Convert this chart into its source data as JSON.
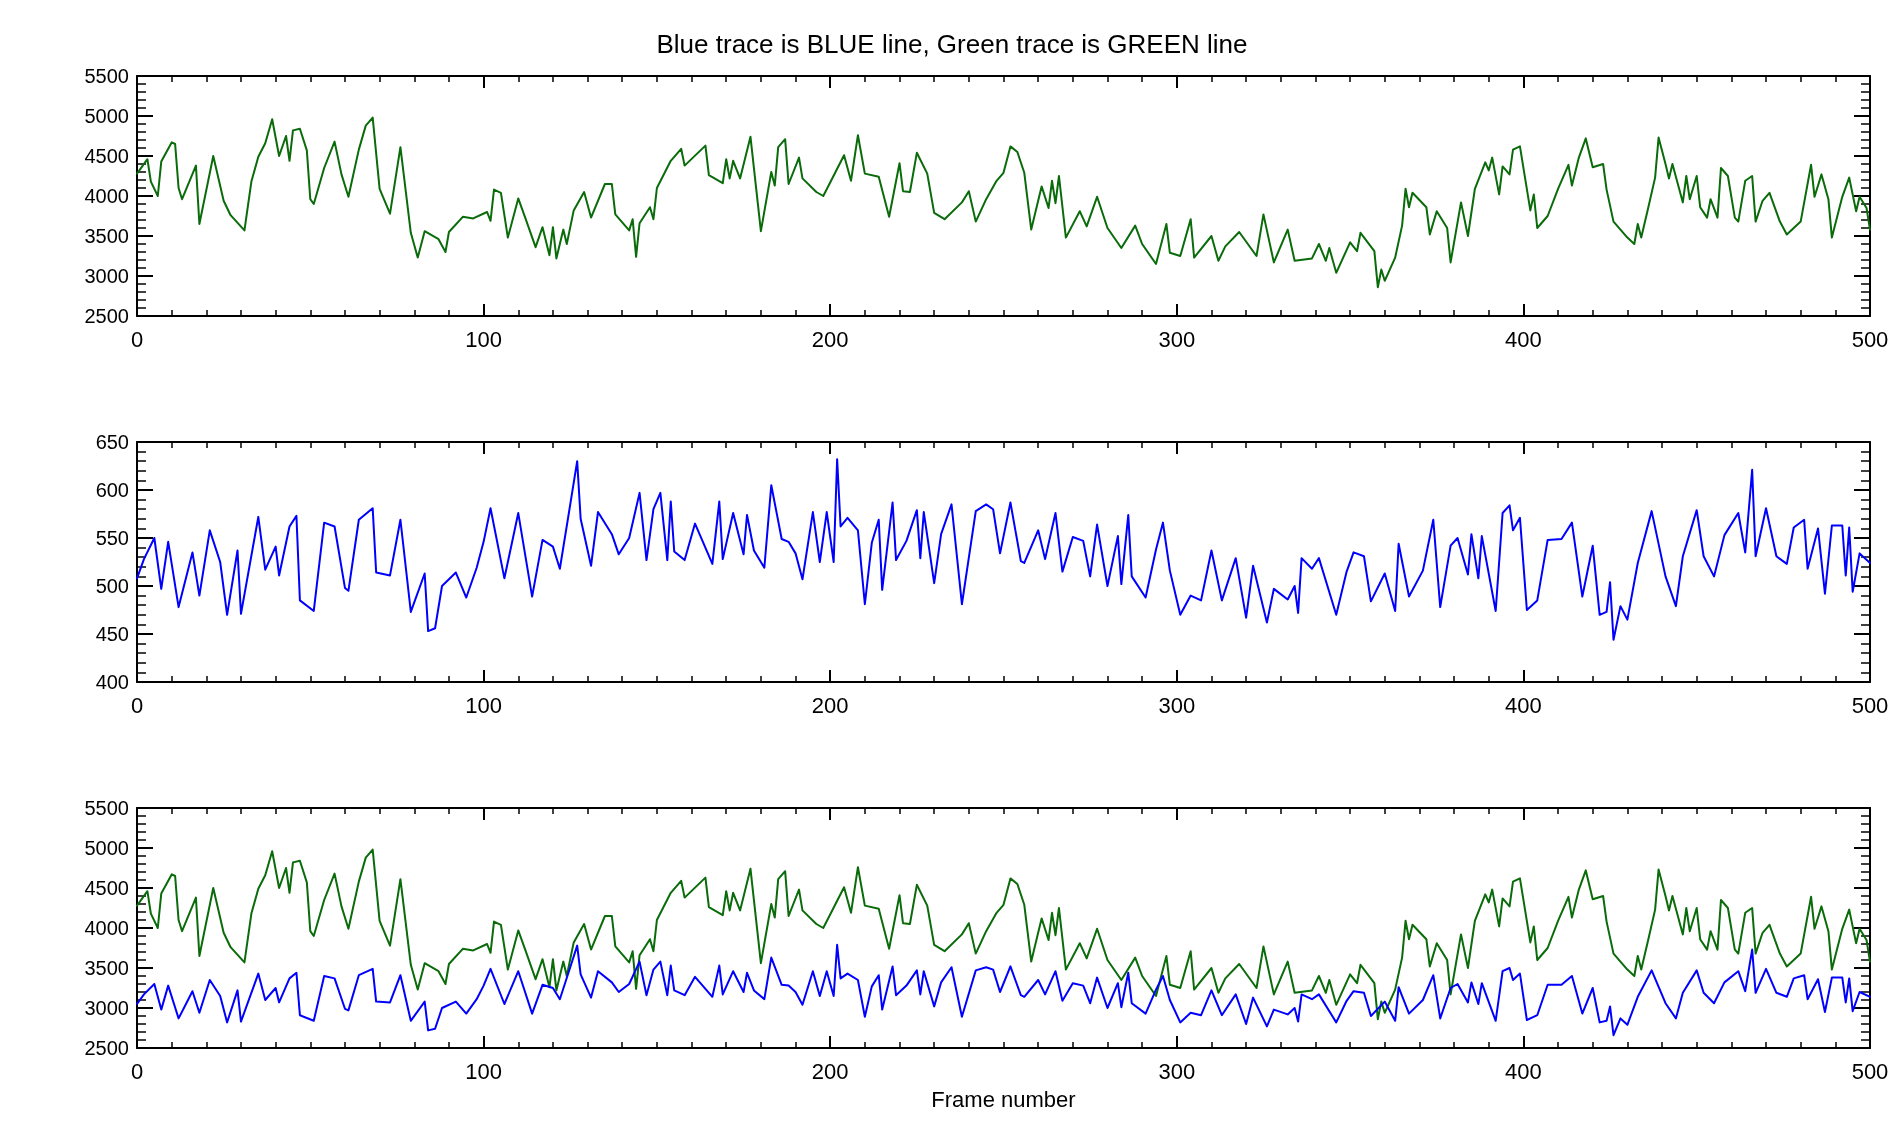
{
  "chart_data": [
    {
      "type": "line",
      "title": "Blue trace is BLUE line, Green trace is GREEN line",
      "marker": "none",
      "line_style": "solid",
      "xlim": [
        0,
        500
      ],
      "xticks": [
        0,
        100,
        200,
        300,
        400,
        500
      ],
      "ylim": [
        2500,
        5500
      ],
      "yticks": [
        2500,
        3000,
        3500,
        4000,
        4500,
        5000,
        5500
      ],
      "series": [
        {
          "color": "#0a6b0a",
          "x": [
            0,
            3,
            4,
            6,
            7,
            10,
            11,
            12,
            13,
            17,
            18,
            22,
            25,
            27,
            31,
            33,
            35,
            37,
            39,
            41,
            43,
            44,
            45,
            47,
            49,
            50,
            51,
            54,
            57,
            59,
            61,
            64,
            66,
            68,
            70,
            73,
            76,
            79,
            81,
            83,
            87,
            89,
            90,
            94,
            97,
            101,
            102,
            103,
            105,
            107,
            110,
            112,
            115,
            117,
            119,
            120,
            121,
            123,
            124,
            126,
            129,
            131,
            135,
            137,
            138,
            142,
            143,
            144,
            145,
            148,
            149,
            150,
            154,
            157,
            158,
            164,
            165,
            169,
            170,
            171,
            172,
            174,
            177,
            180,
            183,
            184,
            185,
            187,
            188,
            191,
            192,
            196,
            198,
            204,
            206,
            208,
            210,
            214,
            217,
            220,
            221,
            223,
            225,
            228,
            230,
            233,
            238,
            240,
            242,
            245,
            248,
            250,
            252,
            254,
            256,
            258,
            260,
            261,
            263,
            264,
            265,
            266,
            268,
            272,
            274,
            277,
            280,
            284,
            288,
            290,
            294,
            297,
            298,
            301,
            304,
            305,
            310,
            312,
            314,
            318,
            323,
            325,
            328,
            332,
            334,
            339,
            341,
            343,
            344,
            346,
            350,
            352,
            353,
            357,
            358,
            359,
            360,
            363,
            365,
            366,
            367,
            368,
            372,
            373,
            375,
            378,
            379,
            382,
            384,
            386,
            389,
            390,
            391,
            393,
            394,
            396,
            397,
            399,
            402,
            403,
            404,
            407,
            410,
            413,
            414,
            416,
            418,
            420,
            423,
            424,
            426,
            430,
            432,
            433,
            434,
            436,
            438,
            439,
            441,
            442,
            443,
            446,
            447,
            448,
            450,
            451,
            453,
            454,
            456,
            457,
            459,
            461,
            462,
            464,
            466,
            467,
            469,
            471,
            474,
            476,
            480,
            483,
            484,
            486,
            488,
            489,
            492,
            494,
            496,
            497,
            499,
            500
          ],
          "values": [
            4280,
            4460,
            4180,
            4000,
            4430,
            4670,
            4650,
            4100,
            3960,
            4380,
            3650,
            4500,
            3940,
            3760,
            3570,
            4180,
            4490,
            4660,
            4960,
            4500,
            4750,
            4440,
            4820,
            4840,
            4570,
            3960,
            3900,
            4350,
            4680,
            4270,
            3990,
            4580,
            4880,
            4980,
            4090,
            3780,
            4610,
            3540,
            3230,
            3560,
            3460,
            3300,
            3550,
            3740,
            3720,
            3800,
            3690,
            4080,
            4040,
            3480,
            3970,
            3730,
            3360,
            3610,
            3260,
            3610,
            3220,
            3580,
            3400,
            3820,
            4050,
            3730,
            4150,
            4150,
            3770,
            3570,
            3710,
            3240,
            3660,
            3860,
            3710,
            4100,
            4440,
            4590,
            4380,
            4630,
            4260,
            4160,
            4460,
            4220,
            4440,
            4220,
            4740,
            3560,
            4300,
            4130,
            4610,
            4710,
            4150,
            4480,
            4220,
            4050,
            4000,
            4510,
            4190,
            4760,
            4280,
            4240,
            3740,
            4410,
            4060,
            4050,
            4540,
            4280,
            3790,
            3710,
            3920,
            4060,
            3680,
            3960,
            4190,
            4290,
            4620,
            4550,
            4290,
            3580,
            3940,
            4120,
            3850,
            4190,
            3910,
            4250,
            3480,
            3810,
            3620,
            3990,
            3600,
            3350,
            3630,
            3400,
            3150,
            3650,
            3290,
            3250,
            3710,
            3230,
            3500,
            3190,
            3370,
            3550,
            3250,
            3770,
            3170,
            3580,
            3190,
            3220,
            3400,
            3190,
            3350,
            3040,
            3420,
            3310,
            3540,
            3310,
            2860,
            3080,
            2940,
            3230,
            3630,
            4090,
            3860,
            4040,
            3860,
            3520,
            3810,
            3600,
            3170,
            3920,
            3500,
            4090,
            4420,
            4320,
            4480,
            4020,
            4370,
            4270,
            4580,
            4620,
            3820,
            4020,
            3600,
            3750,
            4090,
            4390,
            4130,
            4480,
            4720,
            4360,
            4400,
            4080,
            3680,
            3480,
            3400,
            3650,
            3480,
            3850,
            4230,
            4730,
            4400,
            4220,
            4400,
            3920,
            4250,
            3960,
            4250,
            3860,
            3730,
            3960,
            3730,
            4350,
            4250,
            3730,
            3680,
            4190,
            4250,
            3680,
            3940,
            4040,
            3680,
            3520,
            3680,
            4390,
            3990,
            4270,
            3960,
            3480,
            3990,
            4230,
            3810,
            3990,
            3850,
            3580
          ]
        }
      ]
    },
    {
      "type": "line",
      "marker": "none",
      "line_style": "solid",
      "xlim": [
        0,
        500
      ],
      "xticks": [
        0,
        100,
        200,
        300,
        400,
        500
      ],
      "ylim": [
        400,
        650
      ],
      "yticks": [
        400,
        450,
        500,
        550,
        600,
        650
      ],
      "series": [
        {
          "color": "#0000ff",
          "x": [
            0,
            2,
            5,
            7,
            9,
            12,
            16,
            18,
            21,
            24,
            26,
            29,
            30,
            35,
            37,
            40,
            41,
            44,
            46,
            47,
            51,
            54,
            57,
            60,
            61,
            64,
            68,
            69,
            73,
            76,
            79,
            83,
            84,
            86,
            88,
            92,
            95,
            98,
            100,
            102,
            106,
            110,
            114,
            117,
            120,
            122,
            125,
            127,
            128,
            131,
            133,
            137,
            139,
            142,
            145,
            147,
            149,
            151,
            153,
            154,
            155,
            158,
            161,
            166,
            168,
            169,
            172,
            175,
            176,
            178,
            181,
            183,
            186,
            188,
            190,
            192,
            195,
            197,
            199,
            201,
            202,
            203,
            205,
            208,
            210,
            212,
            214,
            215,
            218,
            219,
            222,
            225,
            226,
            227,
            230,
            232,
            235,
            238,
            242,
            245,
            247,
            249,
            252,
            255,
            256,
            260,
            262,
            265,
            267,
            270,
            273,
            275,
            277,
            280,
            283,
            284,
            286,
            287,
            291,
            294,
            296,
            298,
            301,
            304,
            307,
            310,
            313,
            317,
            320,
            322,
            326,
            328,
            332,
            334,
            335,
            336,
            339,
            341,
            346,
            349,
            351,
            354,
            356,
            360,
            363,
            364,
            367,
            371,
            374,
            376,
            379,
            381,
            384,
            385,
            387,
            388,
            392,
            394,
            396,
            397,
            399,
            401,
            404,
            407,
            411,
            414,
            417,
            420,
            422,
            424,
            425,
            426,
            428,
            430,
            433,
            437,
            441,
            444,
            446,
            450,
            452,
            455,
            458,
            462,
            464,
            466,
            467,
            470,
            473,
            476,
            478,
            481,
            482,
            485,
            487,
            489,
            492,
            493,
            494,
            495,
            497,
            500
          ],
          "values": [
            508,
            528,
            550,
            497,
            546,
            478,
            535,
            490,
            558,
            525,
            470,
            537,
            471,
            572,
            517,
            541,
            511,
            562,
            573,
            485,
            474,
            566,
            562,
            498,
            495,
            569,
            581,
            514,
            511,
            569,
            473,
            513,
            453,
            456,
            500,
            514,
            488,
            519,
            546,
            581,
            508,
            576,
            489,
            548,
            541,
            518,
            585,
            630,
            570,
            521,
            577,
            554,
            533,
            550,
            597,
            527,
            580,
            597,
            527,
            588,
            536,
            527,
            565,
            523,
            588,
            528,
            576,
            533,
            574,
            537,
            519,
            605,
            549,
            546,
            534,
            507,
            577,
            525,
            577,
            525,
            632,
            562,
            571,
            558,
            481,
            545,
            569,
            496,
            587,
            527,
            547,
            579,
            529,
            577,
            503,
            554,
            585,
            481,
            578,
            585,
            580,
            534,
            587,
            526,
            524,
            558,
            528,
            576,
            515,
            551,
            547,
            510,
            564,
            500,
            552,
            502,
            574,
            510,
            488,
            538,
            566,
            516,
            470,
            490,
            485,
            537,
            485,
            529,
            467,
            521,
            462,
            497,
            486,
            500,
            472,
            529,
            518,
            529,
            470,
            515,
            535,
            531,
            484,
            513,
            474,
            544,
            489,
            516,
            569,
            478,
            542,
            550,
            512,
            554,
            508,
            552,
            474,
            576,
            584,
            558,
            571,
            475,
            485,
            548,
            549,
            566,
            489,
            542,
            470,
            473,
            504,
            444,
            479,
            465,
            524,
            578,
            510,
            479,
            531,
            579,
            531,
            510,
            553,
            576,
            535,
            621,
            531,
            581,
            531,
            523,
            561,
            569,
            518,
            560,
            492,
            563,
            563,
            511,
            561,
            494,
            534,
            524
          ]
        }
      ]
    },
    {
      "type": "line",
      "xlabel": "Frame number",
      "marker": "none",
      "line_style": "solid",
      "xlim": [
        0,
        500
      ],
      "xticks": [
        0,
        100,
        200,
        300,
        400,
        500
      ],
      "ylim": [
        2500,
        5500
      ],
      "yticks": [
        2500,
        3000,
        3500,
        4000,
        4500,
        5000,
        5500
      ],
      "series": [
        {
          "color": "#0a6b0a",
          "x": [
            0,
            3,
            4,
            6,
            7,
            10,
            11,
            12,
            13,
            17,
            18,
            22,
            25,
            27,
            31,
            33,
            35,
            37,
            39,
            41,
            43,
            44,
            45,
            47,
            49,
            50,
            51,
            54,
            57,
            59,
            61,
            64,
            66,
            68,
            70,
            73,
            76,
            79,
            81,
            83,
            87,
            89,
            90,
            94,
            97,
            101,
            102,
            103,
            105,
            107,
            110,
            112,
            115,
            117,
            119,
            120,
            121,
            123,
            124,
            126,
            129,
            131,
            135,
            137,
            138,
            142,
            143,
            144,
            145,
            148,
            149,
            150,
            154,
            157,
            158,
            164,
            165,
            169,
            170,
            171,
            172,
            174,
            177,
            180,
            183,
            184,
            185,
            187,
            188,
            191,
            192,
            196,
            198,
            204,
            206,
            208,
            210,
            214,
            217,
            220,
            221,
            223,
            225,
            228,
            230,
            233,
            238,
            240,
            242,
            245,
            248,
            250,
            252,
            254,
            256,
            258,
            260,
            261,
            263,
            264,
            265,
            266,
            268,
            272,
            274,
            277,
            280,
            284,
            288,
            290,
            294,
            297,
            298,
            301,
            304,
            305,
            310,
            312,
            314,
            318,
            323,
            325,
            328,
            332,
            334,
            339,
            341,
            343,
            344,
            346,
            350,
            352,
            353,
            357,
            358,
            359,
            360,
            363,
            365,
            366,
            367,
            368,
            372,
            373,
            375,
            378,
            379,
            382,
            384,
            386,
            389,
            390,
            391,
            393,
            394,
            396,
            397,
            399,
            402,
            403,
            404,
            407,
            410,
            413,
            414,
            416,
            418,
            420,
            423,
            424,
            426,
            430,
            432,
            433,
            434,
            436,
            438,
            439,
            441,
            442,
            443,
            446,
            447,
            448,
            450,
            451,
            453,
            454,
            456,
            457,
            459,
            461,
            462,
            464,
            466,
            467,
            469,
            471,
            474,
            476,
            480,
            483,
            484,
            486,
            488,
            489,
            492,
            494,
            496,
            497,
            499,
            500
          ],
          "values": [
            4280,
            4460,
            4180,
            4000,
            4430,
            4670,
            4650,
            4100,
            3960,
            4380,
            3650,
            4500,
            3940,
            3760,
            3570,
            4180,
            4490,
            4660,
            4960,
            4500,
            4750,
            4440,
            4820,
            4840,
            4570,
            3960,
            3900,
            4350,
            4680,
            4270,
            3990,
            4580,
            4880,
            4980,
            4090,
            3780,
            4610,
            3540,
            3230,
            3560,
            3460,
            3300,
            3550,
            3740,
            3720,
            3800,
            3690,
            4080,
            4040,
            3480,
            3970,
            3730,
            3360,
            3610,
            3260,
            3610,
            3220,
            3580,
            3400,
            3820,
            4050,
            3730,
            4150,
            4150,
            3770,
            3570,
            3710,
            3240,
            3660,
            3860,
            3710,
            4100,
            4440,
            4590,
            4380,
            4630,
            4260,
            4160,
            4460,
            4220,
            4440,
            4220,
            4740,
            3560,
            4300,
            4130,
            4610,
            4710,
            4150,
            4480,
            4220,
            4050,
            4000,
            4510,
            4190,
            4760,
            4280,
            4240,
            3740,
            4410,
            4060,
            4050,
            4540,
            4280,
            3790,
            3710,
            3920,
            4060,
            3680,
            3960,
            4190,
            4290,
            4620,
            4550,
            4290,
            3580,
            3940,
            4120,
            3850,
            4190,
            3910,
            4250,
            3480,
            3810,
            3620,
            3990,
            3600,
            3350,
            3630,
            3400,
            3150,
            3650,
            3290,
            3250,
            3710,
            3230,
            3500,
            3190,
            3370,
            3550,
            3250,
            3770,
            3170,
            3580,
            3190,
            3220,
            3400,
            3190,
            3350,
            3040,
            3420,
            3310,
            3540,
            3310,
            2860,
            3080,
            2940,
            3230,
            3630,
            4090,
            3860,
            4040,
            3860,
            3520,
            3810,
            3600,
            3170,
            3920,
            3500,
            4090,
            4420,
            4320,
            4480,
            4020,
            4370,
            4270,
            4580,
            4620,
            3820,
            4020,
            3600,
            3750,
            4090,
            4390,
            4130,
            4480,
            4720,
            4360,
            4400,
            4080,
            3680,
            3480,
            3400,
            3650,
            3480,
            3850,
            4230,
            4730,
            4400,
            4220,
            4400,
            3920,
            4250,
            3960,
            4250,
            3860,
            3730,
            3960,
            3730,
            4350,
            4250,
            3730,
            3680,
            4190,
            4250,
            3680,
            3940,
            4040,
            3680,
            3520,
            3680,
            4390,
            3990,
            4270,
            3960,
            3480,
            3990,
            4230,
            3810,
            3990,
            3850,
            3580
          ]
        },
        {
          "color": "#0000ff",
          "x": [
            0,
            2,
            5,
            7,
            9,
            12,
            16,
            18,
            21,
            24,
            26,
            29,
            30,
            35,
            37,
            40,
            41,
            44,
            46,
            47,
            51,
            54,
            57,
            60,
            61,
            64,
            68,
            69,
            73,
            76,
            79,
            83,
            84,
            86,
            88,
            92,
            95,
            98,
            100,
            102,
            106,
            110,
            114,
            117,
            120,
            122,
            125,
            127,
            128,
            131,
            133,
            137,
            139,
            142,
            145,
            147,
            149,
            151,
            153,
            154,
            155,
            158,
            161,
            166,
            168,
            169,
            172,
            175,
            176,
            178,
            181,
            183,
            186,
            188,
            190,
            192,
            195,
            197,
            199,
            201,
            202,
            203,
            205,
            208,
            210,
            212,
            214,
            215,
            218,
            219,
            222,
            225,
            226,
            227,
            230,
            232,
            235,
            238,
            242,
            245,
            247,
            249,
            252,
            255,
            256,
            260,
            262,
            265,
            267,
            270,
            273,
            275,
            277,
            280,
            283,
            284,
            286,
            287,
            291,
            294,
            296,
            298,
            301,
            304,
            307,
            310,
            313,
            317,
            320,
            322,
            326,
            328,
            332,
            334,
            335,
            336,
            339,
            341,
            346,
            349,
            351,
            354,
            356,
            360,
            363,
            364,
            367,
            371,
            374,
            376,
            379,
            381,
            384,
            385,
            387,
            388,
            392,
            394,
            396,
            397,
            399,
            401,
            404,
            407,
            411,
            414,
            417,
            420,
            422,
            424,
            425,
            426,
            428,
            430,
            433,
            437,
            441,
            444,
            446,
            450,
            452,
            455,
            458,
            462,
            464,
            466,
            467,
            470,
            473,
            476,
            478,
            481,
            482,
            485,
            487,
            489,
            492,
            493,
            494,
            495,
            497,
            500
          ],
          "values": [
            3050,
            3170,
            3300,
            2980,
            3280,
            2870,
            3210,
            2940,
            3350,
            3150,
            2820,
            3220,
            2830,
            3430,
            3100,
            3250,
            3070,
            3370,
            3440,
            2910,
            2840,
            3400,
            3370,
            2990,
            2970,
            3410,
            3490,
            3080,
            3070,
            3410,
            2840,
            3080,
            2720,
            2740,
            3000,
            3080,
            2930,
            3110,
            3280,
            3490,
            3050,
            3460,
            2930,
            3290,
            3250,
            3110,
            3510,
            3780,
            3420,
            3130,
            3460,
            3320,
            3200,
            3300,
            3580,
            3160,
            3480,
            3580,
            3160,
            3530,
            3220,
            3160,
            3390,
            3140,
            3530,
            3170,
            3460,
            3200,
            3440,
            3220,
            3110,
            3630,
            3290,
            3280,
            3200,
            3040,
            3460,
            3150,
            3460,
            3150,
            3790,
            3370,
            3430,
            3350,
            2890,
            3270,
            3410,
            2980,
            3520,
            3160,
            3280,
            3470,
            3170,
            3460,
            3020,
            3320,
            3510,
            2890,
            3470,
            3510,
            3480,
            3200,
            3520,
            3160,
            3140,
            3350,
            3170,
            3460,
            3090,
            3310,
            3280,
            3060,
            3380,
            3000,
            3310,
            3010,
            3440,
            3060,
            2930,
            3230,
            3400,
            3100,
            2820,
            2940,
            2910,
            3220,
            2910,
            3170,
            2800,
            3130,
            2770,
            2980,
            2920,
            3000,
            2830,
            3170,
            3110,
            3170,
            2820,
            3090,
            3210,
            3190,
            2900,
            3080,
            2840,
            3260,
            2930,
            3100,
            3410,
            2870,
            3250,
            3300,
            3070,
            3320,
            3050,
            3310,
            2840,
            3460,
            3500,
            3350,
            3430,
            2850,
            2910,
            3290,
            3290,
            3400,
            2930,
            3250,
            2820,
            2840,
            3020,
            2660,
            2870,
            2790,
            3140,
            3470,
            3060,
            2870,
            3190,
            3470,
            3190,
            3060,
            3320,
            3460,
            3210,
            3730,
            3190,
            3490,
            3190,
            3140,
            3370,
            3410,
            3110,
            3360,
            2950,
            3380,
            3380,
            3070,
            3370,
            2960,
            3200,
            3140
          ]
        }
      ]
    }
  ]
}
